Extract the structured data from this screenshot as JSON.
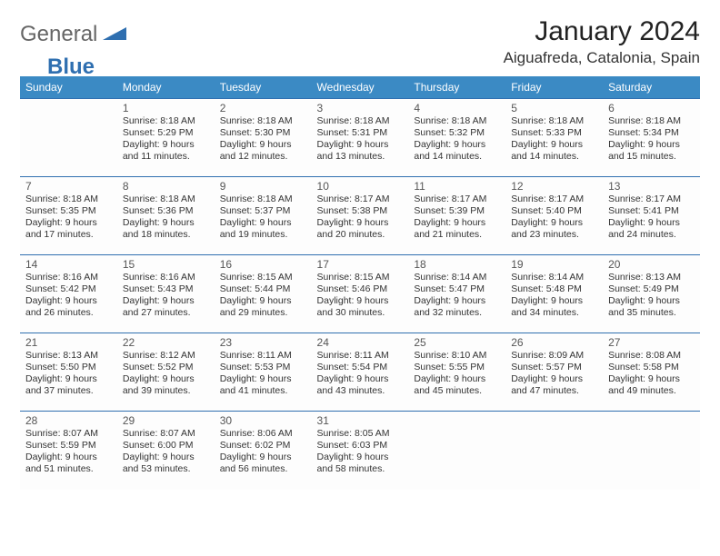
{
  "logo": {
    "part1": "General",
    "part2": "Blue"
  },
  "header": {
    "title": "January 2024",
    "location": "Aiguafreda, Catalonia, Spain"
  },
  "colors": {
    "header_bg": "#3b8ac4",
    "header_fg": "#ffffff",
    "border": "#2f6fb0",
    "text": "#333333",
    "logo_gray": "#666666",
    "logo_blue": "#2f6fb0",
    "background": "#ffffff"
  },
  "dayNames": [
    "Sunday",
    "Monday",
    "Tuesday",
    "Wednesday",
    "Thursday",
    "Friday",
    "Saturday"
  ],
  "startOffset": 1,
  "days": [
    {
      "n": 1,
      "sunrise": "8:18 AM",
      "sunset": "5:29 PM",
      "dl1": "Daylight: 9 hours",
      "dl2": "and 11 minutes."
    },
    {
      "n": 2,
      "sunrise": "8:18 AM",
      "sunset": "5:30 PM",
      "dl1": "Daylight: 9 hours",
      "dl2": "and 12 minutes."
    },
    {
      "n": 3,
      "sunrise": "8:18 AM",
      "sunset": "5:31 PM",
      "dl1": "Daylight: 9 hours",
      "dl2": "and 13 minutes."
    },
    {
      "n": 4,
      "sunrise": "8:18 AM",
      "sunset": "5:32 PM",
      "dl1": "Daylight: 9 hours",
      "dl2": "and 14 minutes."
    },
    {
      "n": 5,
      "sunrise": "8:18 AM",
      "sunset": "5:33 PM",
      "dl1": "Daylight: 9 hours",
      "dl2": "and 14 minutes."
    },
    {
      "n": 6,
      "sunrise": "8:18 AM",
      "sunset": "5:34 PM",
      "dl1": "Daylight: 9 hours",
      "dl2": "and 15 minutes."
    },
    {
      "n": 7,
      "sunrise": "8:18 AM",
      "sunset": "5:35 PM",
      "dl1": "Daylight: 9 hours",
      "dl2": "and 17 minutes."
    },
    {
      "n": 8,
      "sunrise": "8:18 AM",
      "sunset": "5:36 PM",
      "dl1": "Daylight: 9 hours",
      "dl2": "and 18 minutes."
    },
    {
      "n": 9,
      "sunrise": "8:18 AM",
      "sunset": "5:37 PM",
      "dl1": "Daylight: 9 hours",
      "dl2": "and 19 minutes."
    },
    {
      "n": 10,
      "sunrise": "8:17 AM",
      "sunset": "5:38 PM",
      "dl1": "Daylight: 9 hours",
      "dl2": "and 20 minutes."
    },
    {
      "n": 11,
      "sunrise": "8:17 AM",
      "sunset": "5:39 PM",
      "dl1": "Daylight: 9 hours",
      "dl2": "and 21 minutes."
    },
    {
      "n": 12,
      "sunrise": "8:17 AM",
      "sunset": "5:40 PM",
      "dl1": "Daylight: 9 hours",
      "dl2": "and 23 minutes."
    },
    {
      "n": 13,
      "sunrise": "8:17 AM",
      "sunset": "5:41 PM",
      "dl1": "Daylight: 9 hours",
      "dl2": "and 24 minutes."
    },
    {
      "n": 14,
      "sunrise": "8:16 AM",
      "sunset": "5:42 PM",
      "dl1": "Daylight: 9 hours",
      "dl2": "and 26 minutes."
    },
    {
      "n": 15,
      "sunrise": "8:16 AM",
      "sunset": "5:43 PM",
      "dl1": "Daylight: 9 hours",
      "dl2": "and 27 minutes."
    },
    {
      "n": 16,
      "sunrise": "8:15 AM",
      "sunset": "5:44 PM",
      "dl1": "Daylight: 9 hours",
      "dl2": "and 29 minutes."
    },
    {
      "n": 17,
      "sunrise": "8:15 AM",
      "sunset": "5:46 PM",
      "dl1": "Daylight: 9 hours",
      "dl2": "and 30 minutes."
    },
    {
      "n": 18,
      "sunrise": "8:14 AM",
      "sunset": "5:47 PM",
      "dl1": "Daylight: 9 hours",
      "dl2": "and 32 minutes."
    },
    {
      "n": 19,
      "sunrise": "8:14 AM",
      "sunset": "5:48 PM",
      "dl1": "Daylight: 9 hours",
      "dl2": "and 34 minutes."
    },
    {
      "n": 20,
      "sunrise": "8:13 AM",
      "sunset": "5:49 PM",
      "dl1": "Daylight: 9 hours",
      "dl2": "and 35 minutes."
    },
    {
      "n": 21,
      "sunrise": "8:13 AM",
      "sunset": "5:50 PM",
      "dl1": "Daylight: 9 hours",
      "dl2": "and 37 minutes."
    },
    {
      "n": 22,
      "sunrise": "8:12 AM",
      "sunset": "5:52 PM",
      "dl1": "Daylight: 9 hours",
      "dl2": "and 39 minutes."
    },
    {
      "n": 23,
      "sunrise": "8:11 AM",
      "sunset": "5:53 PM",
      "dl1": "Daylight: 9 hours",
      "dl2": "and 41 minutes."
    },
    {
      "n": 24,
      "sunrise": "8:11 AM",
      "sunset": "5:54 PM",
      "dl1": "Daylight: 9 hours",
      "dl2": "and 43 minutes."
    },
    {
      "n": 25,
      "sunrise": "8:10 AM",
      "sunset": "5:55 PM",
      "dl1": "Daylight: 9 hours",
      "dl2": "and 45 minutes."
    },
    {
      "n": 26,
      "sunrise": "8:09 AM",
      "sunset": "5:57 PM",
      "dl1": "Daylight: 9 hours",
      "dl2": "and 47 minutes."
    },
    {
      "n": 27,
      "sunrise": "8:08 AM",
      "sunset": "5:58 PM",
      "dl1": "Daylight: 9 hours",
      "dl2": "and 49 minutes."
    },
    {
      "n": 28,
      "sunrise": "8:07 AM",
      "sunset": "5:59 PM",
      "dl1": "Daylight: 9 hours",
      "dl2": "and 51 minutes."
    },
    {
      "n": 29,
      "sunrise": "8:07 AM",
      "sunset": "6:00 PM",
      "dl1": "Daylight: 9 hours",
      "dl2": "and 53 minutes."
    },
    {
      "n": 30,
      "sunrise": "8:06 AM",
      "sunset": "6:02 PM",
      "dl1": "Daylight: 9 hours",
      "dl2": "and 56 minutes."
    },
    {
      "n": 31,
      "sunrise": "8:05 AM",
      "sunset": "6:03 PM",
      "dl1": "Daylight: 9 hours",
      "dl2": "and 58 minutes."
    }
  ],
  "labels": {
    "sunrise": "Sunrise:",
    "sunset": "Sunset:"
  }
}
